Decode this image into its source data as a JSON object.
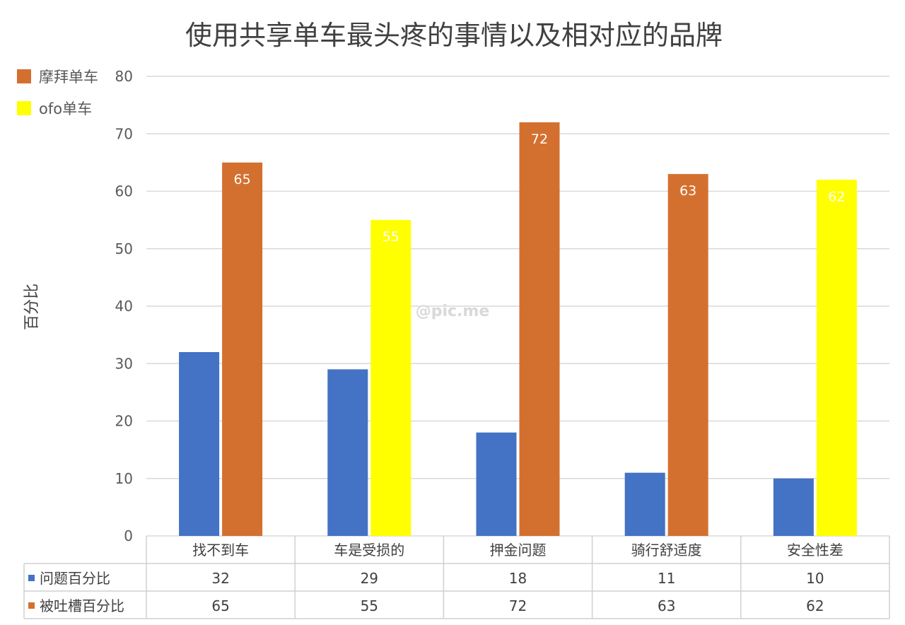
{
  "colors": {
    "series_blue": "#4472c4",
    "series_orange": "#d4702f",
    "series_yellow": "#ffff00",
    "grid": "#d9d9d9",
    "table_line": "#d0d0d0"
  },
  "legend_top": [
    {
      "label": "摩拜单车",
      "color": "#d4702f"
    },
    {
      "label": "ofo单车",
      "color": "#ffff00"
    }
  ],
  "watermark": "@pic.me",
  "chart_data": {
    "type": "bar",
    "title": "使用共享单车最头疼的事情以及相对应的品牌",
    "ylabel": "百分比",
    "xlabel": "",
    "ylim": [
      0,
      80
    ],
    "yticks": [
      "0",
      "10",
      "20",
      "30",
      "40",
      "50",
      "60",
      "70",
      "80"
    ],
    "grid": true,
    "legend_position": "top-left",
    "categories": [
      "找不到车",
      "车是受损的",
      "押金问题",
      "骑行舒适度",
      "安全性差"
    ],
    "series": [
      {
        "name": "问题百分比",
        "values": [
          32,
          29,
          18,
          11,
          10
        ],
        "color": "#4472c4"
      },
      {
        "name": "被吐槽百分比",
        "values": [
          65,
          55,
          72,
          63,
          62
        ],
        "color": "#d4702f",
        "point_colors": [
          "#d4702f",
          "#ffff00",
          "#d4702f",
          "#d4702f",
          "#ffff00"
        ],
        "data_labels": [
          "65",
          "55",
          "72",
          "63",
          "62"
        ]
      }
    ],
    "table_rows": [
      {
        "label": "问题百分比",
        "values": [
          "32",
          "29",
          "18",
          "11",
          "10"
        ],
        "color": "#4472c4"
      },
      {
        "label": "被吐槽百分比",
        "values": [
          "65",
          "55",
          "72",
          "63",
          "62"
        ],
        "color": "#d4702f"
      }
    ]
  }
}
